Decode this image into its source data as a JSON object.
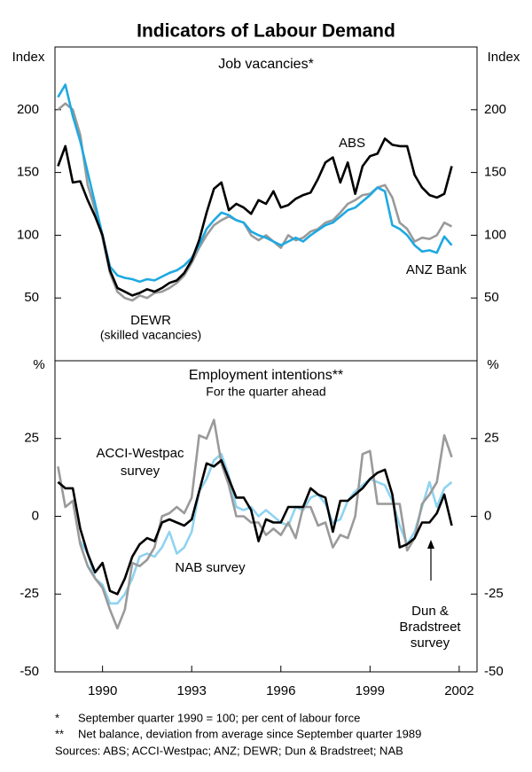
{
  "title": "Indicators of Labour Demand",
  "chart_data": [
    {
      "type": "line",
      "title": "Job vacancies*",
      "y_label": "Index",
      "xlim": [
        1988.4,
        2002.6
      ],
      "ylim": [
        0,
        250
      ],
      "yticks": [
        50,
        100,
        150,
        200
      ],
      "x": [
        1988.5,
        1988.75,
        1989,
        1989.25,
        1989.5,
        1989.75,
        1990,
        1990.25,
        1990.5,
        1990.75,
        1991,
        1991.25,
        1991.5,
        1991.75,
        1992,
        1992.25,
        1992.5,
        1992.75,
        1993,
        1993.25,
        1993.5,
        1993.75,
        1994,
        1994.25,
        1994.5,
        1994.75,
        1995,
        1995.25,
        1995.5,
        1995.75,
        1996,
        1996.25,
        1996.5,
        1996.75,
        1997,
        1997.25,
        1997.5,
        1997.75,
        1998,
        1998.25,
        1998.5,
        1998.75,
        1999,
        1999.25,
        1999.5,
        1999.75,
        2000,
        2000.25,
        2000.5,
        2000.75,
        2001,
        2001.25,
        2001.5,
        2001.75
      ],
      "series": [
        {
          "label": [
            "DEWR",
            "(skilled vacancies)"
          ],
          "color": "#9a9a9a",
          "values": [
            200,
            205,
            200,
            180,
            140,
            120,
            98,
            70,
            55,
            50,
            48,
            52,
            50,
            54,
            55,
            58,
            62,
            68,
            78,
            90,
            100,
            108,
            112,
            115,
            112,
            110,
            100,
            96,
            100,
            95,
            90,
            100,
            96,
            98,
            103,
            105,
            110,
            112,
            118,
            125,
            128,
            132,
            133,
            138,
            140,
            130,
            110,
            105,
            95,
            98,
            97,
            100,
            110,
            107
          ]
        },
        {
          "label": [
            "ANZ Bank"
          ],
          "color": "#1ea9e1",
          "values": [
            210,
            220,
            195,
            175,
            150,
            125,
            100,
            75,
            68,
            66,
            65,
            63,
            65,
            64,
            67,
            70,
            72,
            76,
            82,
            92,
            105,
            112,
            118,
            116,
            112,
            110,
            103,
            100,
            98,
            95,
            92,
            95,
            98,
            95,
            100,
            104,
            108,
            110,
            115,
            120,
            122,
            127,
            132,
            138,
            135,
            108,
            105,
            100,
            92,
            87,
            88,
            86,
            99,
            92
          ]
        },
        {
          "label": [
            "ABS"
          ],
          "color": "#000000",
          "values": [
            155,
            171,
            142,
            143,
            128,
            115,
            100,
            72,
            58,
            55,
            52,
            54,
            57,
            55,
            58,
            62,
            64,
            70,
            80,
            96,
            118,
            137,
            142,
            120,
            125,
            122,
            117,
            128,
            125,
            135,
            122,
            124,
            129,
            132,
            134,
            145,
            158,
            162,
            142,
            158,
            133,
            155,
            163,
            165,
            177,
            172,
            171,
            171,
            148,
            138,
            132,
            130,
            133,
            155
          ]
        }
      ]
    },
    {
      "type": "line",
      "title": "Employment intentions**",
      "subtitle": "For the quarter ahead",
      "y_label": "%",
      "xlim": [
        1988.4,
        2002.6
      ],
      "xticks": [
        1990,
        1993,
        1996,
        1999,
        2002
      ],
      "ylim": [
        -50,
        50
      ],
      "yticks": [
        -50,
        -25,
        0,
        25
      ],
      "x": [
        1988.5,
        1988.75,
        1989,
        1989.25,
        1989.5,
        1989.75,
        1990,
        1990.25,
        1990.5,
        1990.75,
        1991,
        1991.25,
        1991.5,
        1991.75,
        1992,
        1992.25,
        1992.5,
        1992.75,
        1993,
        1993.25,
        1993.5,
        1993.75,
        1994,
        1994.25,
        1994.5,
        1994.75,
        1995,
        1995.25,
        1995.5,
        1995.75,
        1996,
        1996.25,
        1996.5,
        1996.75,
        1997,
        1997.25,
        1997.5,
        1997.75,
        1998,
        1998.25,
        1998.5,
        1998.75,
        1999,
        1999.25,
        1999.5,
        1999.75,
        2000,
        2000.25,
        2000.5,
        2000.75,
        2001,
        2001.25,
        2001.5,
        2001.75
      ],
      "series": [
        {
          "label": [
            "NAB survey"
          ],
          "color": "#8fd3f0",
          "values": [
            null,
            null,
            null,
            -8,
            -12,
            -20,
            -22,
            -28,
            -28,
            -25,
            -20,
            -13,
            -12,
            -13,
            -10,
            -5,
            -12,
            -10,
            -5,
            8,
            12,
            18,
            20,
            13,
            3,
            2,
            3,
            0,
            2,
            0,
            -2,
            -3,
            3,
            2,
            6,
            7,
            4,
            -2,
            -1,
            5,
            8,
            10,
            12,
            11,
            10,
            5,
            -3,
            -9,
            -5,
            3,
            11,
            3,
            9,
            11
          ]
        },
        {
          "label": [
            "ACCI-Westpac",
            "survey"
          ],
          "color": "#9a9a9a",
          "values": [
            16,
            3,
            5,
            -9,
            -16,
            -20,
            -23,
            -30,
            -36,
            -30,
            -15,
            -16,
            -14,
            -10,
            0,
            1,
            3,
            1,
            6,
            26,
            25,
            31,
            17,
            10,
            0,
            0,
            -2,
            -2,
            -6,
            -4,
            -6,
            -2,
            -7,
            3,
            3,
            -3,
            -2,
            -10,
            -6,
            -7,
            0,
            20,
            21,
            4,
            4,
            4,
            4,
            -11,
            -7,
            4,
            7,
            11,
            26,
            19
          ]
        },
        {
          "label": [
            "Dun &",
            "Bradstreet",
            "survey"
          ],
          "color": "#000000",
          "values": [
            11,
            9,
            9,
            -4,
            -12,
            -18,
            -15,
            -24,
            -25,
            -20,
            -13,
            -9,
            -7,
            -8,
            -2,
            -1,
            -2,
            -3,
            -1,
            8,
            17,
            16,
            18,
            12,
            6,
            6,
            2,
            -8,
            -1,
            -2,
            -2,
            3,
            3,
            3,
            9,
            7,
            6,
            -5,
            5,
            5,
            7,
            9,
            12,
            14,
            15,
            7,
            -10,
            -9,
            -7,
            -2,
            -2,
            1,
            7,
            -3
          ]
        }
      ]
    }
  ],
  "footnotes": [
    {
      "mark": "*",
      "text": "September quarter 1990 = 100; per cent of labour force"
    },
    {
      "mark": "**",
      "text": "Net balance, deviation from average since September quarter 1989"
    }
  ],
  "sources": "Sources: ABS; ACCI-Westpac; ANZ; DEWR; Dun & Bradstreet; NAB"
}
